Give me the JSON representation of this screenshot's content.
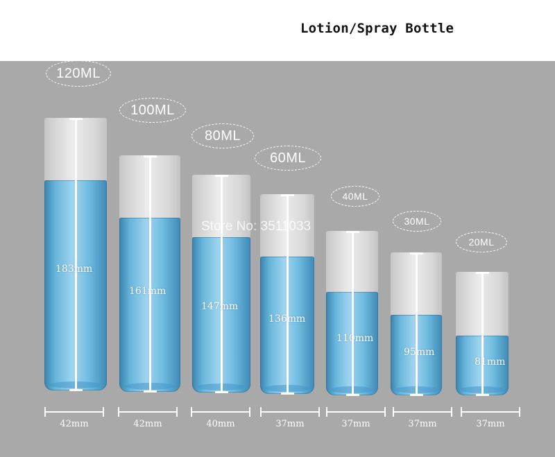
{
  "title": "Lotion/Spray Bottle",
  "watermark": "Store No: 3511033",
  "colors": {
    "background": "#a9a9a9",
    "glass": "#6bb8df",
    "cap": "#e3e3e3",
    "annotation": "#ffffff"
  },
  "bottles": [
    {
      "volume": "120ML",
      "height": "183mm",
      "width": "42mm"
    },
    {
      "volume": "100ML",
      "height": "161mm",
      "width": "42mm"
    },
    {
      "volume": "80ML",
      "height": "147mm",
      "width": "40mm"
    },
    {
      "volume": "60ML",
      "height": "136mm",
      "width": "37mm"
    },
    {
      "volume": "40ML",
      "height": "110mm",
      "width": "37mm"
    },
    {
      "volume": "30ML",
      "height": "95mm",
      "width": "37mm"
    },
    {
      "volume": "20ML",
      "height": "81mm",
      "width": "37mm"
    }
  ]
}
